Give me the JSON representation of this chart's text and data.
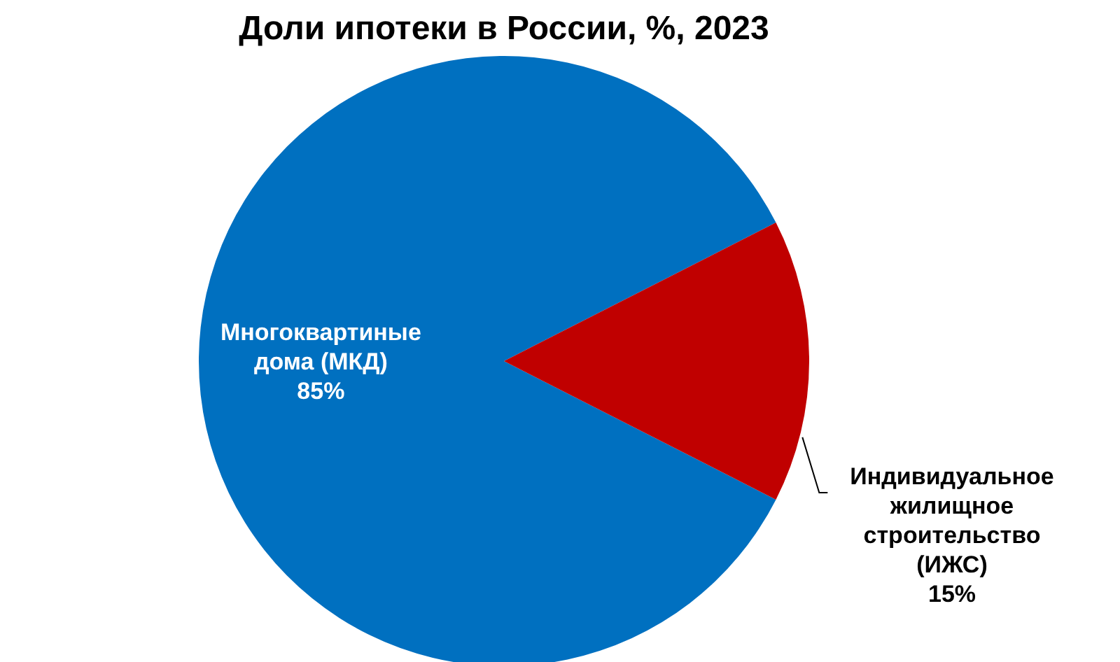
{
  "chart_data": {
    "type": "pie",
    "title": "Доли ипотеки в России, %, 2023",
    "categories": [
      "Многоквартиные дома (МКД)",
      "Индивидуальное жилищное строительство (ИЖС)"
    ],
    "values": [
      85,
      15
    ],
    "colors": [
      "#0070c0",
      "#c00000"
    ],
    "value_labels": [
      "85%",
      "15%"
    ]
  }
}
